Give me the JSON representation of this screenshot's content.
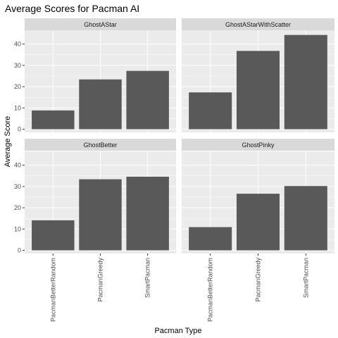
{
  "chart_data": {
    "type": "bar",
    "title": "Average Scores for Pacman AI",
    "xlabel": "Pacman Type",
    "ylabel": "Average Score",
    "categories": [
      "PacmanBetterRandom",
      "PacmanGreedy",
      "SmartPacman"
    ],
    "y_ticks": [
      0,
      10,
      20,
      30,
      40
    ],
    "ylim": [
      -1.5,
      46.5
    ],
    "grid": true,
    "facets": [
      {
        "name": "GhostAStar",
        "values": [
          8.8,
          23.4,
          27.4
        ]
      },
      {
        "name": "GhostAStarWithScatter",
        "values": [
          17.3,
          36.8,
          44.3
        ]
      },
      {
        "name": "GhostBetter",
        "values": [
          14.1,
          33.4,
          34.6
        ]
      },
      {
        "name": "GhostPinky",
        "values": [
          10.9,
          26.6,
          30.2
        ]
      }
    ],
    "colors": {
      "bar": "#595959",
      "panel_background": "#ebebeb",
      "strip_background": "#d9d9d9",
      "gridline": "#ffffff",
      "text": "#1a1a1a",
      "tick_label": "#4d4d4d"
    }
  }
}
